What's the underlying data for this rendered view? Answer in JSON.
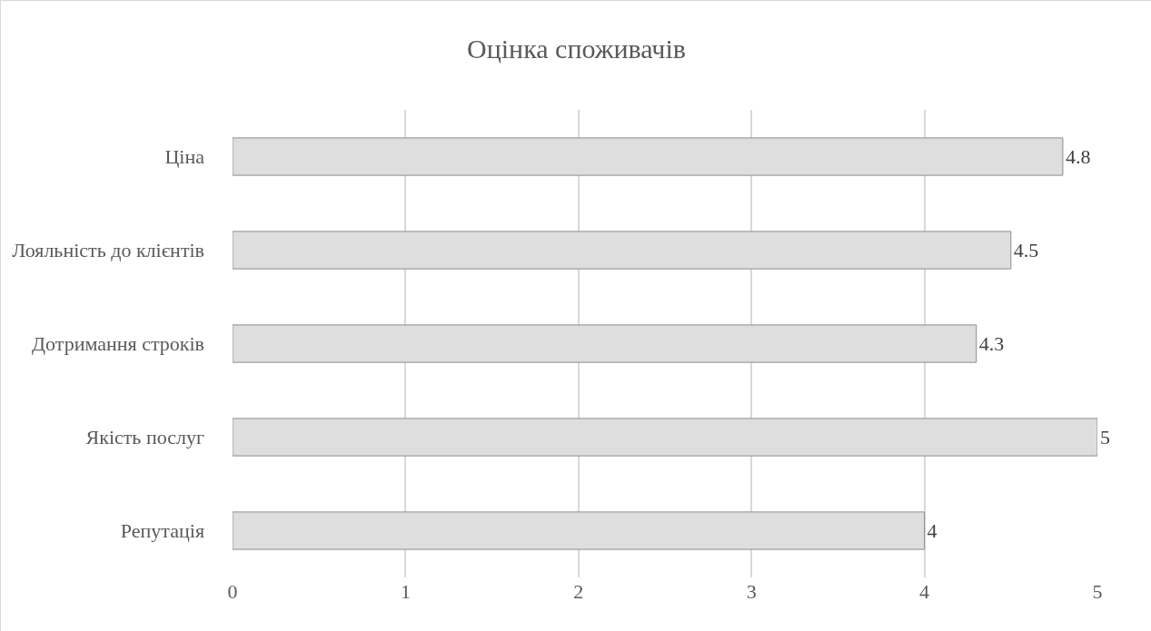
{
  "chart_data": {
    "type": "bar",
    "orientation": "horizontal",
    "title": "Оцінка споживачів",
    "categories": [
      "Ціна",
      "Лояльність до клієнтів",
      "Дотримання строків",
      "Якість послуг",
      "Репутація"
    ],
    "values": [
      4.8,
      4.5,
      4.3,
      5,
      4
    ],
    "color": "#dedede",
    "xlim": [
      0,
      5
    ],
    "xticks": [
      0,
      1,
      2,
      3,
      4,
      5
    ],
    "grid": "x",
    "data_labels": true,
    "legend": false
  }
}
